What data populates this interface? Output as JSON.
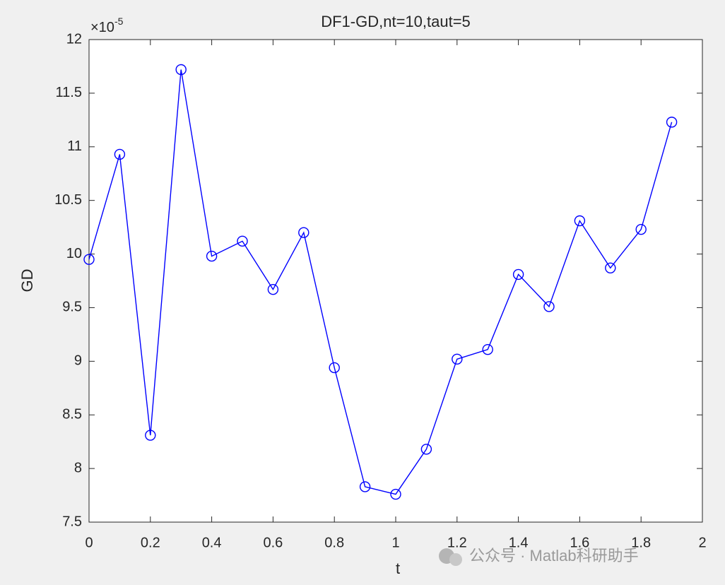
{
  "chart_data": {
    "type": "line",
    "title": "DF1-GD,nt=10,taut=5",
    "x_label": "t",
    "y_label": "GD",
    "y_exponent": {
      "base": "×10",
      "power": "-5"
    },
    "x": [
      0,
      0.1,
      0.2,
      0.3,
      0.4,
      0.5,
      0.6,
      0.7,
      0.8,
      0.9,
      1.0,
      1.1,
      1.2,
      1.3,
      1.4,
      1.5,
      1.6,
      1.7,
      1.8,
      1.9
    ],
    "values": [
      9.95,
      10.93,
      8.31,
      11.72,
      9.98,
      10.12,
      9.67,
      10.2,
      8.94,
      7.83,
      7.76,
      8.18,
      9.02,
      9.11,
      9.81,
      9.51,
      10.31,
      9.87,
      10.23,
      11.23
    ],
    "color": "#0000ff",
    "marker": "circle",
    "xlim": [
      0,
      2
    ],
    "xticks": [
      0,
      0.2,
      0.4,
      0.6,
      0.8,
      1,
      1.2,
      1.4,
      1.6,
      1.8,
      2
    ],
    "ylim": [
      7.5,
      12
    ],
    "yticks": [
      7.5,
      8,
      8.5,
      9,
      9.5,
      10,
      10.5,
      11,
      11.5,
      12
    ],
    "grid": false,
    "watermark": "公众号 · Matlab科研助手"
  }
}
